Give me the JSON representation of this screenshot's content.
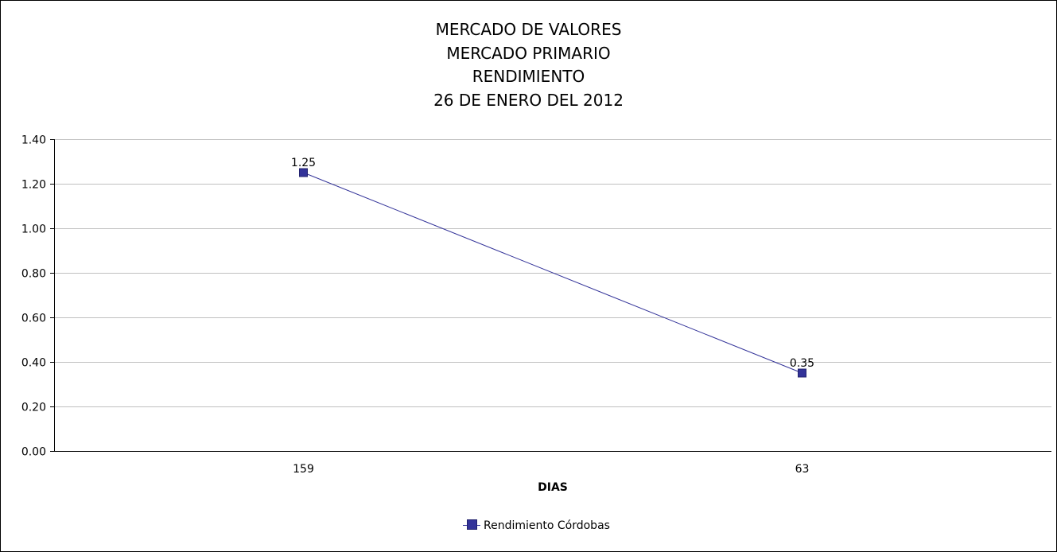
{
  "chart_data": {
    "type": "line",
    "title": [
      "MERCADO DE VALORES",
      "MERCADO PRIMARIO",
      "RENDIMIENTO",
      "26 DE ENERO DEL 2012"
    ],
    "categories": [
      "159",
      "63"
    ],
    "series": [
      {
        "name": "Rendimiento Córdobas",
        "values": [
          1.25,
          0.35
        ],
        "data_labels": [
          "1.25",
          "0.35"
        ],
        "color": "#333399"
      }
    ],
    "xlabel": "DIAS",
    "ylabel": "",
    "ylim": [
      0,
      1.4
    ],
    "yticks": [
      "0.00",
      "0.20",
      "0.40",
      "0.60",
      "0.80",
      "1.00",
      "1.20",
      "1.40"
    ],
    "grid": true,
    "grid_color": "#c0c0c0",
    "legend_position": "bottom"
  }
}
